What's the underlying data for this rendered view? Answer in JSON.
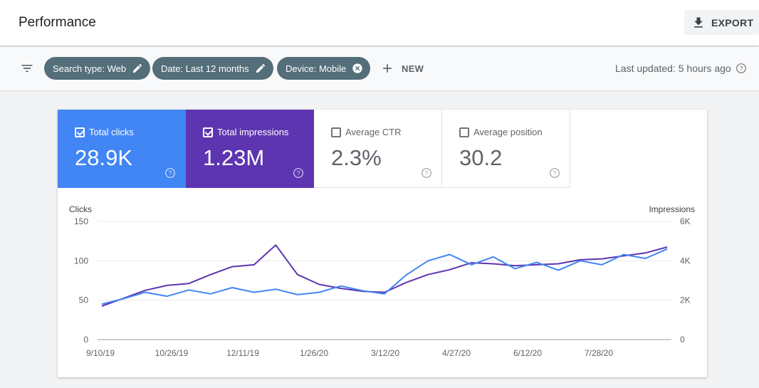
{
  "header": {
    "title": "Performance",
    "export_label": "EXPORT"
  },
  "filters": {
    "chips": [
      {
        "label": "Search type: Web",
        "action": "edit"
      },
      {
        "label": "Date: Last 12 months",
        "action": "edit"
      },
      {
        "label": "Device: Mobile",
        "action": "remove"
      }
    ],
    "new_label": "NEW",
    "last_updated": "Last updated: 5 hours ago"
  },
  "metrics": [
    {
      "label": "Total clicks",
      "value": "28.9K",
      "checked": true
    },
    {
      "label": "Total impressions",
      "value": "1.23M",
      "checked": true
    },
    {
      "label": "Average CTR",
      "value": "2.3%",
      "checked": false
    },
    {
      "label": "Average position",
      "value": "30.2",
      "checked": false
    }
  ],
  "colors": {
    "clicks": "#4285f4",
    "impressions": "#5e35b1",
    "chip": "#546e7a"
  },
  "chart_data": {
    "type": "line",
    "left_axis_label": "Clicks",
    "right_axis_label": "Impressions",
    "left_ylim": [
      0,
      150
    ],
    "left_ticks": [
      "0",
      "50",
      "100",
      "150"
    ],
    "right_ylim": [
      0,
      6000
    ],
    "right_ticks": [
      "0",
      "2K",
      "4K",
      "6K"
    ],
    "x_tick_labels": [
      "9/10/19",
      "10/26/19",
      "12/11/19",
      "1/26/20",
      "3/12/20",
      "4/27/20",
      "6/12/20",
      "7/28/20"
    ],
    "x_dates": [
      "9/10/19",
      "9/24/19",
      "10/8/19",
      "10/22/19",
      "11/5/19",
      "11/19/19",
      "12/3/19",
      "12/17/19",
      "12/31/19",
      "1/14/20",
      "1/28/20",
      "2/11/20",
      "2/25/20",
      "3/10/20",
      "3/24/20",
      "4/7/20",
      "4/21/20",
      "5/5/20",
      "5/19/20",
      "6/2/20",
      "6/16/20",
      "6/30/20",
      "7/14/20",
      "7/28/20",
      "8/11/20",
      "8/25/20",
      "9/8/20"
    ],
    "series": [
      {
        "name": "Clicks",
        "axis": "left",
        "values": [
          45,
          52,
          60,
          55,
          63,
          58,
          66,
          60,
          64,
          57,
          60,
          68,
          62,
          58,
          82,
          100,
          108,
          95,
          105,
          90,
          98,
          88,
          100,
          95,
          108,
          103,
          115
        ]
      },
      {
        "name": "Impressions",
        "axis": "right",
        "values": [
          1700,
          2100,
          2500,
          2750,
          2850,
          3300,
          3700,
          3800,
          4800,
          3300,
          2800,
          2600,
          2450,
          2400,
          2900,
          3300,
          3550,
          3900,
          3850,
          3750,
          3800,
          3850,
          4050,
          4100,
          4250,
          4400,
          4700
        ]
      }
    ]
  }
}
